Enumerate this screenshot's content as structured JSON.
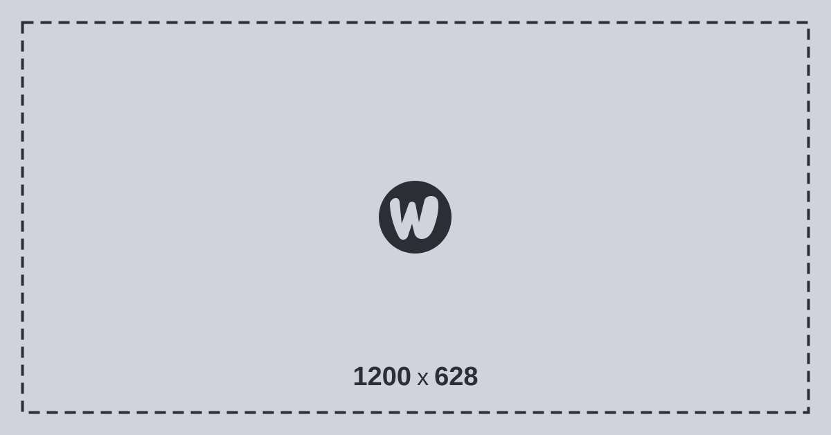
{
  "placeholder": {
    "width_label": "1200",
    "separator": "x",
    "height_label": "628"
  },
  "logo": {
    "icon": "w-logo-icon",
    "color": "#2b2e35"
  },
  "colors": {
    "background": "#d0d3dd",
    "foreground": "#2b2e35"
  }
}
